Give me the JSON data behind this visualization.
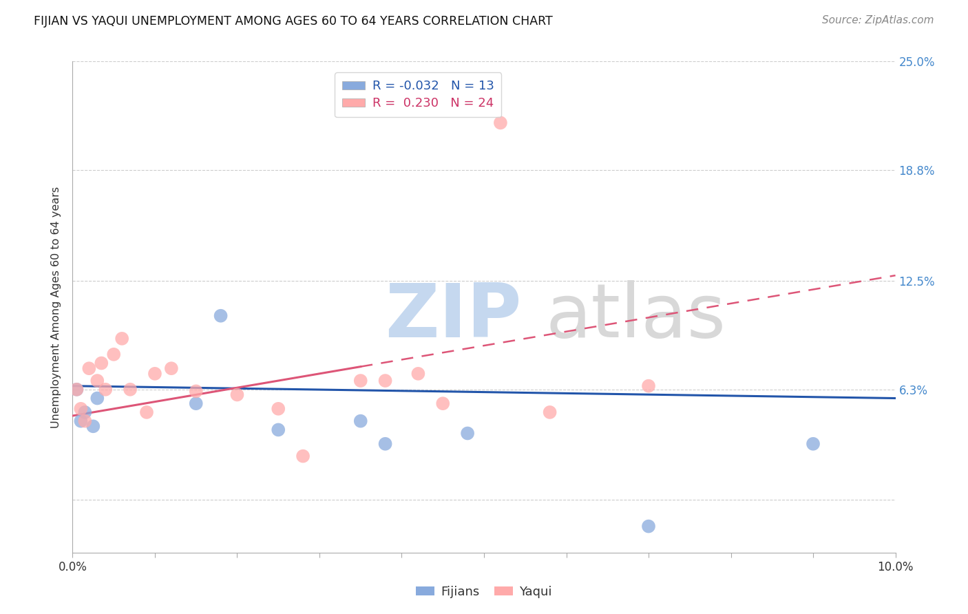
{
  "title": "FIJIAN VS YAQUI UNEMPLOYMENT AMONG AGES 60 TO 64 YEARS CORRELATION CHART",
  "source": "Source: ZipAtlas.com",
  "ylabel": "Unemployment Among Ages 60 to 64 years",
  "xlim": [
    0.0,
    10.0
  ],
  "ylim": [
    -3.0,
    25.0
  ],
  "ytick_vals": [
    0.0,
    6.3,
    12.5,
    18.8,
    25.0
  ],
  "ytick_labels": [
    "",
    "6.3%",
    "12.5%",
    "18.8%",
    "25.0%"
  ],
  "xtick_vals": [
    0.0,
    1.0,
    2.0,
    3.0,
    4.0,
    5.0,
    6.0,
    7.0,
    8.0,
    9.0,
    10.0
  ],
  "xtick_labels": [
    "0.0%",
    "",
    "",
    "",
    "",
    "",
    "",
    "",
    "",
    "",
    "10.0%"
  ],
  "fijian_color": "#88aadd",
  "yaqui_color": "#ffaaaa",
  "fijian_line_color": "#2255aa",
  "yaqui_line_color": "#dd5577",
  "fijian_R": -0.032,
  "fijian_N": 13,
  "yaqui_R": 0.23,
  "yaqui_N": 24,
  "fijian_line_y0": 6.5,
  "fijian_line_y10": 5.8,
  "yaqui_line_y0": 4.8,
  "yaqui_line_solid_end_x": 3.5,
  "yaqui_line_y10": 12.8,
  "fijians_x": [
    0.05,
    0.1,
    0.15,
    0.25,
    0.3,
    1.5,
    1.8,
    2.5,
    3.5,
    3.8,
    4.8,
    7.0,
    9.0
  ],
  "fijians_y": [
    6.3,
    4.5,
    5.0,
    4.2,
    5.8,
    5.5,
    10.5,
    4.0,
    4.5,
    3.2,
    3.8,
    -1.5,
    3.2
  ],
  "yaqui_x": [
    0.05,
    0.1,
    0.15,
    0.2,
    0.3,
    0.35,
    0.4,
    0.5,
    0.6,
    0.7,
    0.9,
    1.0,
    1.2,
    1.5,
    2.0,
    2.5,
    2.8,
    3.5,
    3.8,
    4.2,
    4.5,
    5.2,
    5.8,
    7.0
  ],
  "yaqui_y": [
    6.3,
    5.2,
    4.5,
    7.5,
    6.8,
    7.8,
    6.3,
    8.3,
    9.2,
    6.3,
    5.0,
    7.2,
    7.5,
    6.2,
    6.0,
    5.2,
    2.5,
    6.8,
    6.8,
    7.2,
    5.5,
    21.5,
    5.0,
    6.5
  ]
}
